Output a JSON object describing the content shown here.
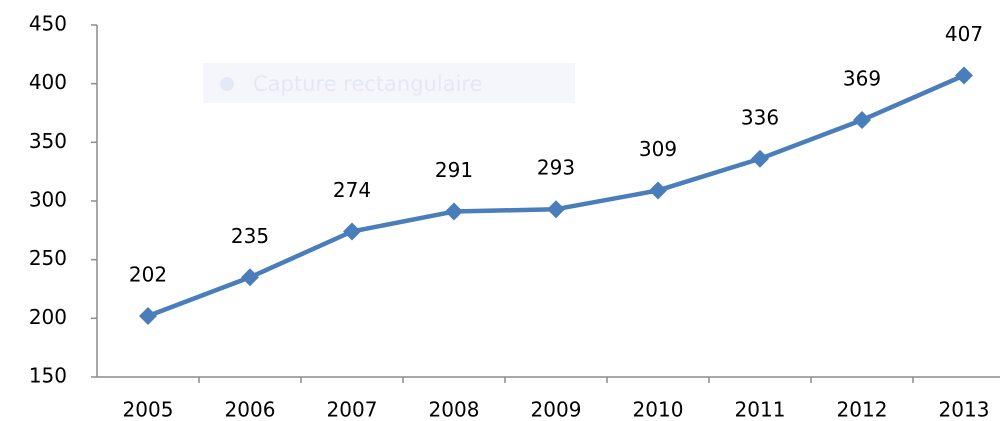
{
  "chart_data": {
    "type": "line",
    "annotation": "Capture rectangulaire",
    "categories": [
      "2005",
      "2006",
      "2007",
      "2008",
      "2009",
      "2010",
      "2011",
      "2012",
      "2013"
    ],
    "series": [
      {
        "color": "#4a7ebb",
        "values": [
          202,
          235,
          274,
          291,
          293,
          309,
          336,
          369,
          407
        ]
      }
    ],
    "ylim": [
      150,
      450
    ],
    "yticks": [
      150,
      200,
      250,
      300,
      350,
      400,
      450
    ],
    "grid": false,
    "data_labels": true
  }
}
